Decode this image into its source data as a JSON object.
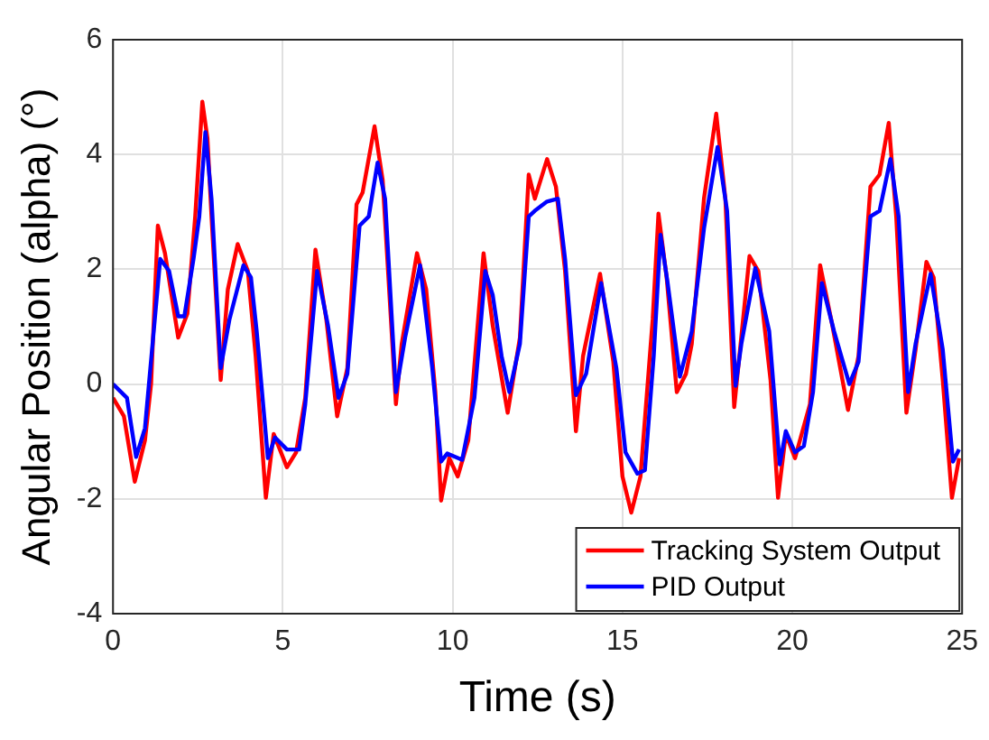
{
  "chart_data": {
    "type": "line",
    "xlabel": "Time (s)",
    "ylabel": "Angular Position (alpha) (°)",
    "xlim": [
      0,
      25
    ],
    "xticks": [
      0,
      5,
      10,
      15,
      20,
      25
    ],
    "ylim": [
      -4,
      6
    ],
    "yticks": [
      -4,
      -2,
      0,
      2,
      4,
      6
    ],
    "grid": true,
    "legend": "bottom right",
    "marker": "none",
    "line_style": "solid",
    "series": [
      {
        "name": "Tracking System Output",
        "color": "#ff0000",
        "x": [
          0,
          0.32,
          0.64,
          0.94,
          1.12,
          1.32,
          1.53,
          1.92,
          2.19,
          2.42,
          2.63,
          2.78,
          2.9,
          3.17,
          3.38,
          3.67,
          3.97,
          4.2,
          4.5,
          4.73,
          5.12,
          5.39,
          5.66,
          5.96,
          6.28,
          6.6,
          6.9,
          7.17,
          7.35,
          7.7,
          7.94,
          8.33,
          8.5,
          8.95,
          9.22,
          9.49,
          9.66,
          9.9,
          10.15,
          10.46,
          10.91,
          11.18,
          11.62,
          11.98,
          12.24,
          12.42,
          12.78,
          13.04,
          13.31,
          13.63,
          13.84,
          14.34,
          14.73,
          15,
          15.26,
          15.53,
          15.89,
          16.06,
          16.3,
          16.6,
          16.87,
          17.04,
          17.4,
          17.76,
          18.03,
          18.29,
          18.74,
          19,
          19.36,
          19.58,
          19.81,
          20.08,
          20.52,
          20.82,
          21.18,
          21.64,
          21.95,
          22.3,
          22.57,
          22.84,
          23.06,
          23.36,
          23.63,
          23.95,
          24.16,
          24.43,
          24.7,
          24.91
        ],
        "values": [
          -0.24,
          -0.56,
          -1.7,
          -0.98,
          0,
          2.76,
          2.28,
          0.81,
          1.23,
          2.92,
          4.92,
          4.28,
          2.92,
          0.07,
          1.65,
          2.44,
          1.97,
          0.49,
          -1.98,
          -0.87,
          -1.45,
          -1.19,
          -0.24,
          2.34,
          1.13,
          -0.56,
          0.28,
          3.13,
          3.34,
          4.49,
          3.55,
          -0.35,
          0.7,
          2.28,
          1.65,
          -0.14,
          -2.03,
          -1.29,
          -1.61,
          -0.98,
          2.28,
          1.02,
          -0.5,
          0.81,
          3.65,
          3.23,
          3.92,
          3.44,
          1.97,
          -0.82,
          0.49,
          1.92,
          0.39,
          -1.61,
          -2.24,
          -1.61,
          1.13,
          2.97,
          1.86,
          -0.14,
          0.18,
          0.7,
          3.23,
          4.71,
          3.23,
          -0.4,
          2.23,
          1.97,
          0.07,
          -1.98,
          -0.87,
          -1.29,
          -0.35,
          2.07,
          1.02,
          -0.45,
          0.49,
          3.44,
          3.65,
          4.55,
          2.92,
          -0.5,
          0.6,
          2.13,
          1.86,
          0.07,
          -1.98,
          -1.29
        ]
      },
      {
        "name": "PID Output",
        "color": "#0000ff",
        "x": [
          0,
          0.41,
          0.68,
          0.94,
          1.39,
          1.65,
          1.92,
          2.1,
          2.37,
          2.54,
          2.72,
          2.9,
          3.17,
          3.43,
          3.84,
          4.06,
          4.23,
          4.56,
          4.77,
          5.12,
          5.48,
          5.66,
          6.01,
          6.33,
          6.64,
          6.9,
          7.26,
          7.53,
          7.79,
          8.01,
          8.33,
          8.6,
          9.04,
          9.4,
          9.66,
          9.84,
          10.28,
          10.64,
          10.96,
          11.18,
          11.44,
          11.67,
          11.98,
          12.24,
          12.42,
          12.78,
          13.1,
          13.31,
          13.63,
          13.93,
          14.37,
          14.82,
          15.09,
          15.44,
          15.66,
          15.92,
          16.12,
          16.33,
          16.69,
          17.04,
          17.4,
          17.8,
          18.08,
          18.33,
          18.5,
          18.91,
          19.32,
          19.63,
          19.81,
          20.08,
          20.34,
          20.61,
          20.87,
          21.23,
          21.68,
          21.95,
          22.3,
          22.57,
          22.89,
          23.13,
          23.41,
          23.63,
          24.07,
          24.43,
          24.73,
          24.91
        ],
        "values": [
          0,
          -0.24,
          -1.27,
          -0.77,
          2.18,
          1.97,
          1.18,
          1.18,
          2.18,
          2.92,
          4.39,
          3.23,
          0.28,
          1.13,
          2.07,
          1.86,
          0.92,
          -1.29,
          -0.93,
          -1.14,
          -1.14,
          -0.35,
          1.97,
          1.02,
          -0.24,
          0.18,
          2.76,
          2.92,
          3.86,
          3.23,
          -0.14,
          0.81,
          2.07,
          0.28,
          -1.35,
          -1.21,
          -1.32,
          -0.24,
          1.97,
          1.55,
          0.49,
          -0.14,
          0.7,
          2.92,
          3.02,
          3.18,
          3.23,
          2.18,
          -0.19,
          0.18,
          1.76,
          0.28,
          -1.19,
          -1.56,
          -1.5,
          0.49,
          2.6,
          1.76,
          0.13,
          0.92,
          2.71,
          4.13,
          3.02,
          -0.03,
          0.7,
          2.02,
          0.92,
          -1.4,
          -0.82,
          -1.19,
          -1.08,
          -0.14,
          1.76,
          0.92,
          0,
          0.39,
          2.92,
          3.02,
          3.92,
          2.92,
          -0.14,
          0.7,
          1.92,
          0.6,
          -1.35,
          -1.14
        ]
      }
    ]
  }
}
